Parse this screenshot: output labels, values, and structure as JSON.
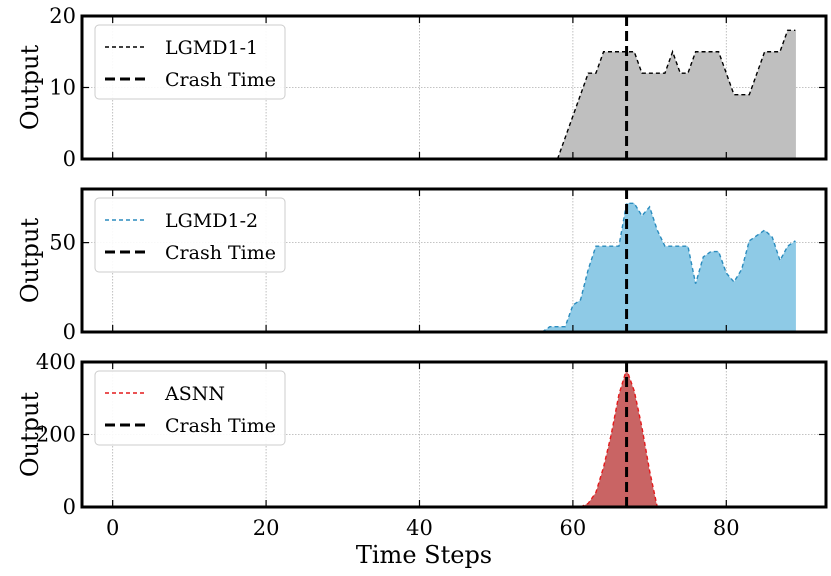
{
  "chart_data": [
    {
      "type": "area",
      "ylabel": "Output",
      "xlabel": "",
      "xlim": [
        -4,
        93
      ],
      "ylim": [
        0,
        20
      ],
      "yticks": [
        0,
        10,
        20
      ],
      "grid": true,
      "legend": "top-left",
      "crash_time": 67,
      "series": [
        {
          "name": "LGMD1-1",
          "color": "#000000",
          "fill": "#bfbfbf",
          "x": [
            58,
            59,
            60,
            61,
            62,
            63,
            64,
            65,
            66,
            67,
            68,
            69,
            70,
            71,
            72,
            73,
            74,
            75,
            76,
            77,
            78,
            79,
            80,
            81,
            82,
            83,
            84,
            85,
            86,
            87,
            88,
            89
          ],
          "y": [
            0,
            3,
            6,
            9,
            12,
            12,
            15,
            15,
            15,
            15,
            15,
            12,
            12,
            12,
            12,
            15,
            12,
            12,
            15,
            15,
            15,
            15,
            12,
            9,
            9,
            9,
            12,
            15,
            15,
            15,
            18,
            18
          ]
        },
        {
          "name": "Crash Time",
          "color": "#000000"
        }
      ]
    },
    {
      "type": "area",
      "ylabel": "Output",
      "xlabel": "",
      "xlim": [
        -4,
        93
      ],
      "ylim": [
        0,
        80
      ],
      "yticks": [
        0,
        50
      ],
      "grid": true,
      "legend": "top-left",
      "crash_time": 67,
      "series": [
        {
          "name": "LGMD1-2",
          "color": "#2b8cbe",
          "fill": "#8ecae6",
          "x": [
            56,
            57,
            58,
            59,
            60,
            61,
            62,
            63,
            64,
            65,
            66,
            67,
            68,
            69,
            70,
            71,
            72,
            73,
            74,
            75,
            76,
            77,
            78,
            79,
            80,
            81,
            82,
            83,
            84,
            85,
            86,
            87,
            88,
            89
          ],
          "y": [
            0,
            3,
            3,
            3,
            15,
            18,
            35,
            48,
            48,
            48,
            48,
            72,
            72,
            65,
            70,
            57,
            48,
            48,
            48,
            48,
            27,
            42,
            45,
            45,
            33,
            28,
            35,
            51,
            54,
            57,
            53,
            40,
            48,
            51
          ]
        },
        {
          "name": "Crash Time",
          "color": "#000000"
        }
      ]
    },
    {
      "type": "area",
      "ylabel": "Output",
      "xlabel": "Time Steps",
      "xlim": [
        -4,
        93
      ],
      "ylim": [
        0,
        400
      ],
      "yticks": [
        0,
        200,
        400
      ],
      "xticks": [
        0,
        20,
        40,
        60,
        80
      ],
      "grid": true,
      "legend": "top-left",
      "crash_time": 67,
      "series": [
        {
          "name": "ASNN",
          "color": "#e41a1c",
          "fill": "#c96464",
          "x": [
            61,
            62,
            63,
            64,
            65,
            66,
            67,
            68,
            69,
            70,
            71
          ],
          "y": [
            0,
            10,
            40,
            110,
            200,
            310,
            380,
            320,
            220,
            100,
            0
          ]
        },
        {
          "name": "Crash Time",
          "color": "#000000"
        }
      ]
    }
  ]
}
